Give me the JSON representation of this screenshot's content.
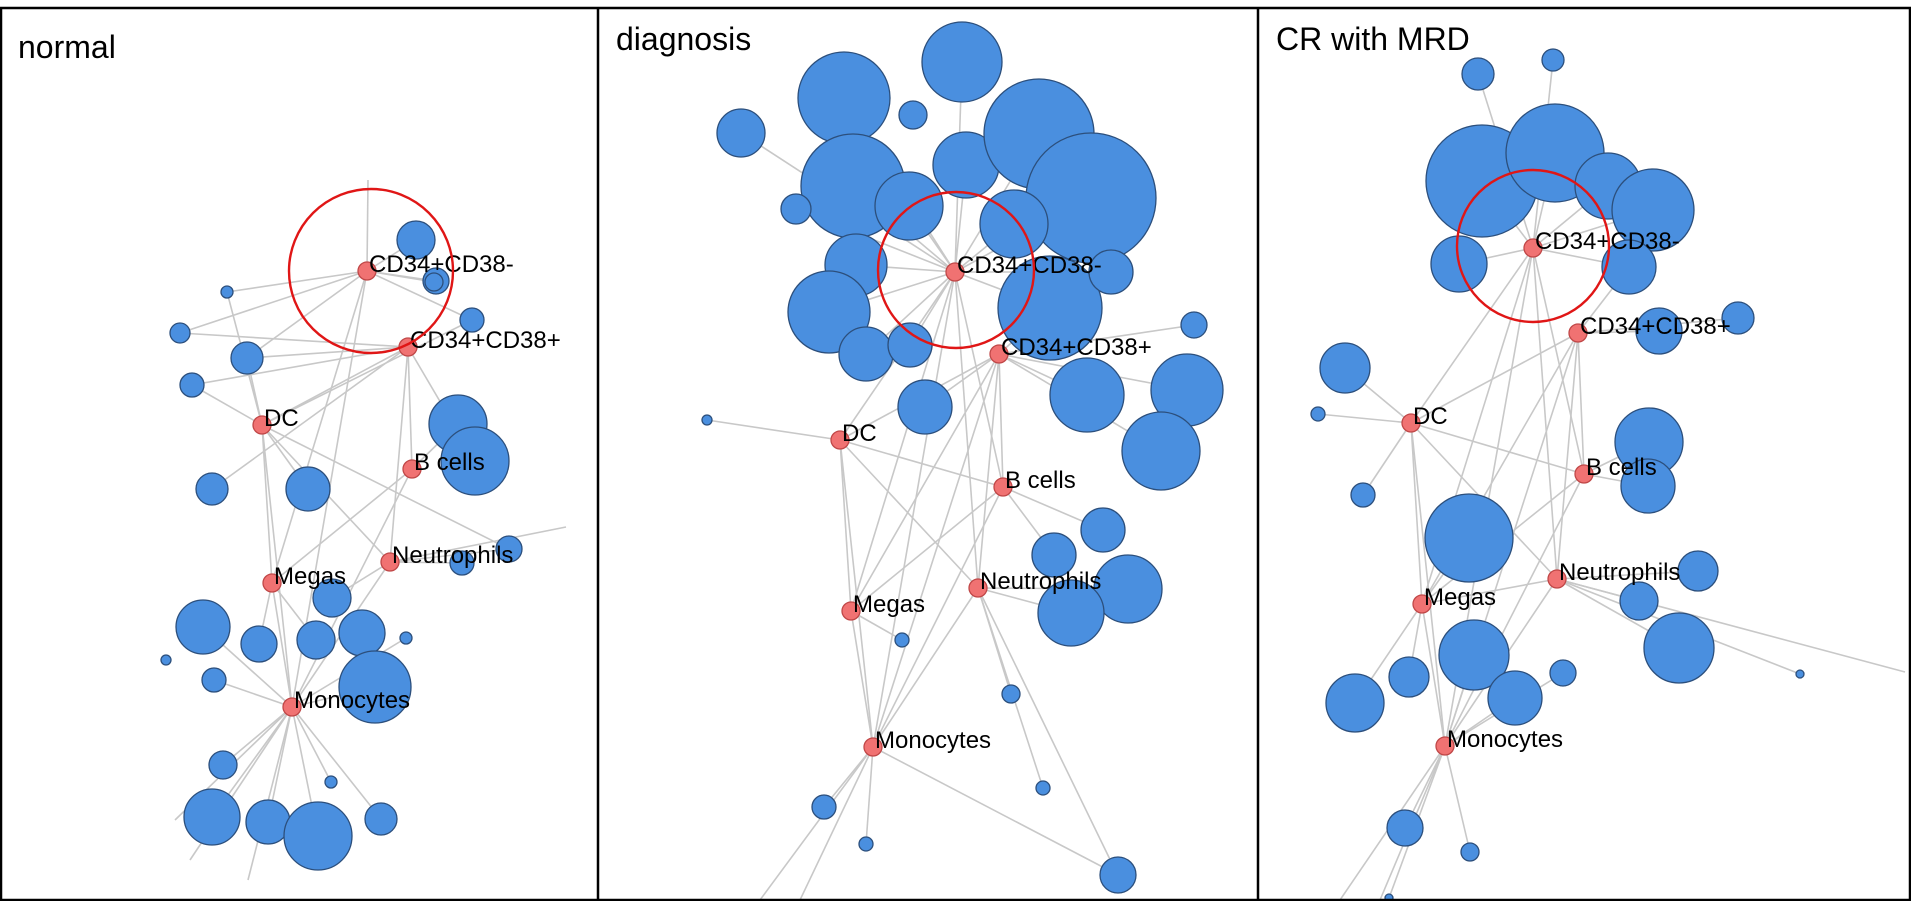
{
  "panels": [
    {
      "title": "normal"
    },
    {
      "title": "diagnosis"
    },
    {
      "title": "CR with MRD"
    }
  ],
  "cell_types": [
    "CD34+CD38-",
    "CD34+CD38+",
    "DC",
    "B cells",
    "Neutrophils",
    "Megas",
    "Monocytes"
  ],
  "highlighted_node": "CD34+CD38-",
  "colors": {
    "cluster_node": "#4a8fdf",
    "cell_type_node": "#f07272",
    "highlight_ring": "#e01616",
    "edge": "#c8c8c8"
  }
}
